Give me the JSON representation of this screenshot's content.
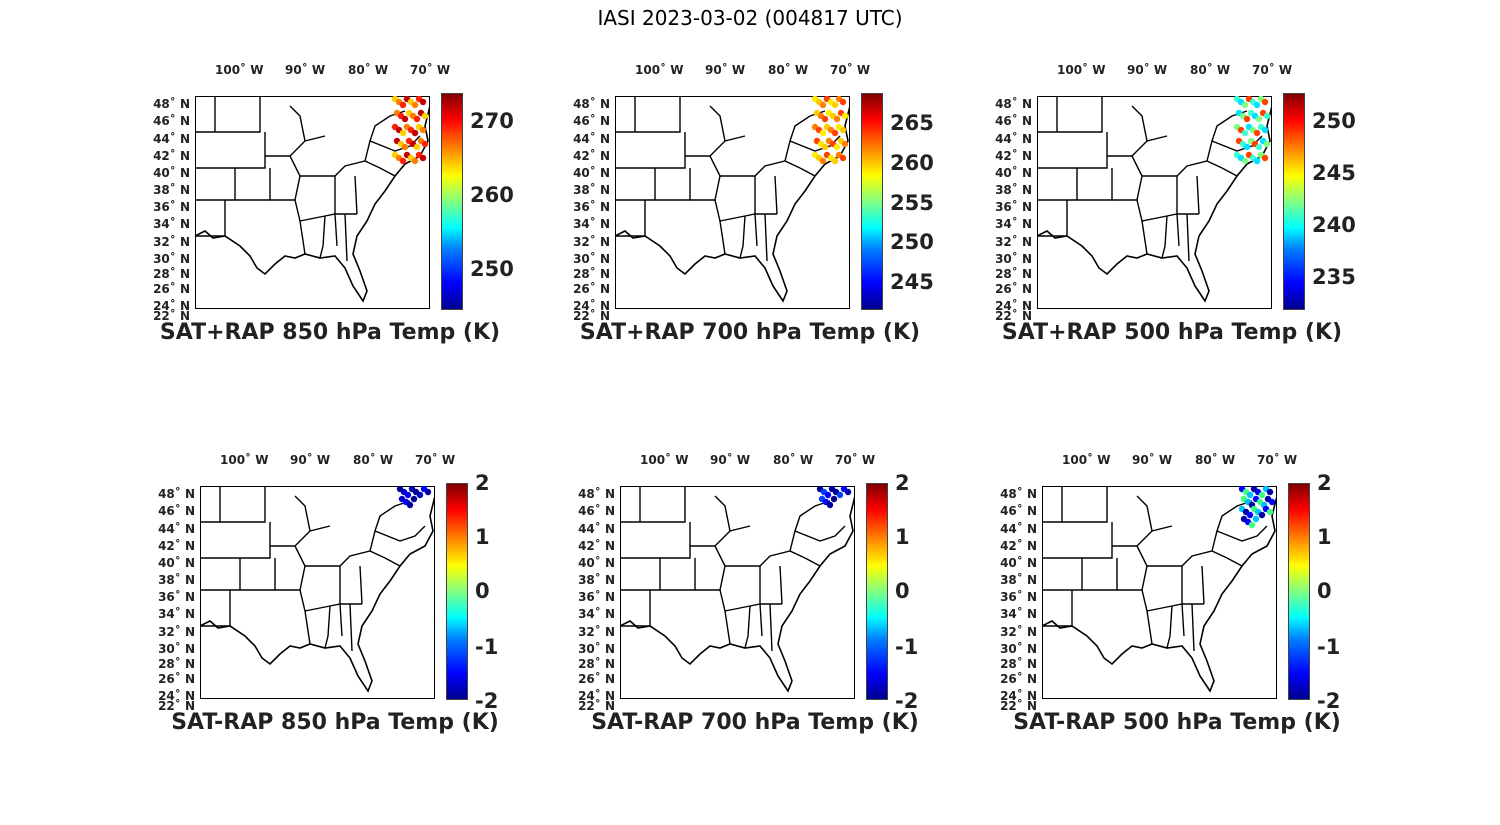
{
  "figure": {
    "title": "IASI 2023-03-02 (004817 UTC)",
    "lon_labels": [
      "100˚ W",
      "90˚ W",
      "80˚ W",
      "70˚ W"
    ],
    "lat_labels": [
      "48˚ N",
      "46˚ N",
      "44˚ N",
      "42˚ N",
      "40˚ N",
      "38˚ N",
      "36˚ N",
      "34˚ N",
      "32˚ N",
      "30˚ N",
      "28˚ N",
      "26˚ N",
      "24˚ N",
      "22˚ N"
    ],
    "colormap": "jet"
  },
  "panels": [
    {
      "caption": "SAT+RAP 850 hPa Temp (K)",
      "cbar_ticks": [
        "270",
        "260",
        "250"
      ]
    },
    {
      "caption": "SAT+RAP 700 hPa Temp (K)",
      "cbar_ticks": [
        "265",
        "260",
        "255",
        "250",
        "245"
      ]
    },
    {
      "caption": "SAT+RAP 500 hPa Temp (K)",
      "cbar_ticks": [
        "250",
        "245",
        "240",
        "235"
      ]
    },
    {
      "caption": "SAT-RAP 850 hPa Temp (K)",
      "cbar_ticks": [
        "2",
        "1",
        "0",
        "-1",
        "-2"
      ]
    },
    {
      "caption": "SAT-RAP 700 hPa Temp (K)",
      "cbar_ticks": [
        "2",
        "1",
        "0",
        "-1",
        "-2"
      ]
    },
    {
      "caption": "SAT-RAP 500 hPa Temp (K)",
      "cbar_ticks": [
        "2",
        "1",
        "0",
        "-1",
        "-2"
      ]
    }
  ]
}
